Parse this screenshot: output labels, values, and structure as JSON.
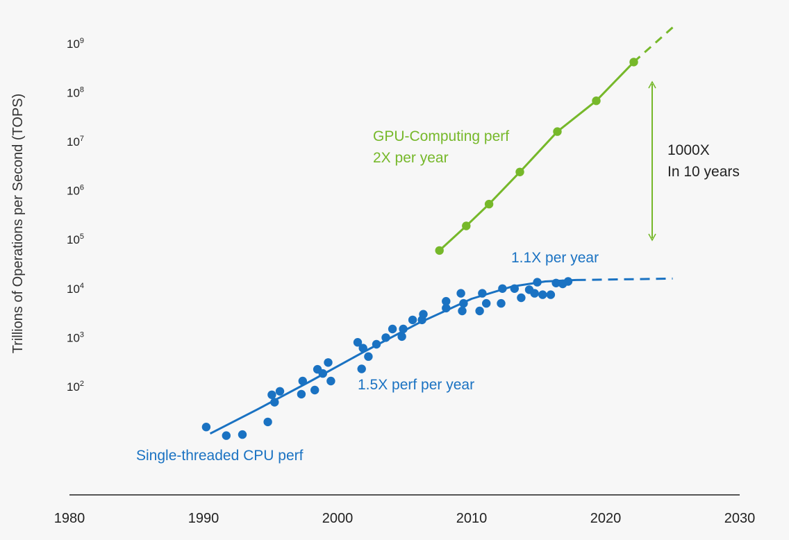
{
  "chart_data": {
    "type": "scatter",
    "ylabel": "Trillions of Operations per Second (TOPS)",
    "y_scale": "log",
    "x_ticks": [
      "1980",
      "1990",
      "2000",
      "2010",
      "2020",
      "2030"
    ],
    "y_ticks": [
      {
        "base": "10",
        "exp": "2",
        "value": 100
      },
      {
        "base": "10",
        "exp": "3",
        "value": 1000
      },
      {
        "base": "10",
        "exp": "4",
        "value": 10000
      },
      {
        "base": "10",
        "exp": "5",
        "value": 100000
      },
      {
        "base": "10",
        "exp": "6",
        "value": 1000000
      },
      {
        "base": "10",
        "exp": "7",
        "value": 10000000
      },
      {
        "base": "10",
        "exp": "8",
        "value": 100000000
      },
      {
        "base": "10",
        "exp": "9",
        "value": 1000000000
      }
    ],
    "xlim": [
      1980,
      2030
    ],
    "colors": {
      "cpu": "#1a72c2",
      "gpu": "#76b82a",
      "axis": "#555555",
      "text": "#222222"
    },
    "series": [
      {
        "key": "cpu",
        "points": [
          [
            1990.2,
            15
          ],
          [
            1991.7,
            10
          ],
          [
            1992.9,
            10.5
          ],
          [
            1994.8,
            19
          ],
          [
            1995.1,
            68
          ],
          [
            1995.3,
            48
          ],
          [
            1995.7,
            80
          ],
          [
            1997.3,
            70
          ],
          [
            1997.4,
            130
          ],
          [
            1998.3,
            85
          ],
          [
            1998.5,
            225
          ],
          [
            1998.9,
            185
          ],
          [
            1999.3,
            310
          ],
          [
            1999.5,
            130
          ],
          [
            2001.5,
            800
          ],
          [
            2001.8,
            230
          ],
          [
            2001.9,
            610
          ],
          [
            2002.3,
            410
          ],
          [
            2002.9,
            730
          ],
          [
            2003.6,
            1000
          ],
          [
            2004.1,
            1500
          ],
          [
            2004.8,
            1050
          ],
          [
            2004.9,
            1500
          ],
          [
            2005.6,
            2300
          ],
          [
            2006.3,
            2300
          ],
          [
            2006.4,
            3000
          ],
          [
            2008.1,
            4000
          ],
          [
            2008.1,
            5500
          ],
          [
            2009.2,
            8000
          ],
          [
            2009.3,
            3500
          ],
          [
            2009.4,
            5000
          ],
          [
            2010.6,
            3500
          ],
          [
            2010.8,
            8000
          ],
          [
            2011.1,
            5000
          ],
          [
            2012.2,
            5000
          ],
          [
            2012.3,
            10000
          ],
          [
            2013.2,
            10000
          ],
          [
            2013.7,
            6500
          ],
          [
            2014.3,
            9500
          ],
          [
            2014.7,
            8000
          ],
          [
            2014.9,
            13500
          ],
          [
            2015.3,
            7500
          ],
          [
            2015.9,
            7500
          ],
          [
            2016.3,
            13000
          ],
          [
            2016.8,
            12500
          ],
          [
            2017.2,
            14000
          ]
        ],
        "trend": [
          [
            1990.5,
            11
          ],
          [
            1994,
            34
          ],
          [
            1998,
            130
          ],
          [
            2002,
            520
          ],
          [
            2006,
            1950
          ],
          [
            2010,
            6200
          ],
          [
            2013,
            11000
          ],
          [
            2015.5,
            14000
          ],
          [
            2017.8,
            15000
          ]
        ],
        "trend_projection": [
          [
            2017.8,
            15000
          ],
          [
            2025,
            16000
          ]
        ]
      },
      {
        "key": "gpu",
        "points": [
          [
            2007.6,
            60000
          ],
          [
            2009.6,
            190000
          ],
          [
            2011.3,
            530000
          ],
          [
            2013.6,
            2400000
          ],
          [
            2016.4,
            16000000
          ],
          [
            2019.3,
            68000000
          ],
          [
            2022.1,
            420000000
          ]
        ],
        "projection": [
          [
            2022.1,
            420000000
          ],
          [
            2025.2,
            2400000000
          ]
        ]
      }
    ],
    "annotations": {
      "gpu_label_line1": "GPU-Computing perf",
      "gpu_label_line2": "2X per year",
      "gap_line1": "1000X",
      "gap_line2": "In 10 years",
      "cpu_late_rate": "1.1X per year",
      "cpu_early_rate": "1.5X perf per year",
      "cpu_label": "Single-threaded CPU perf"
    }
  }
}
